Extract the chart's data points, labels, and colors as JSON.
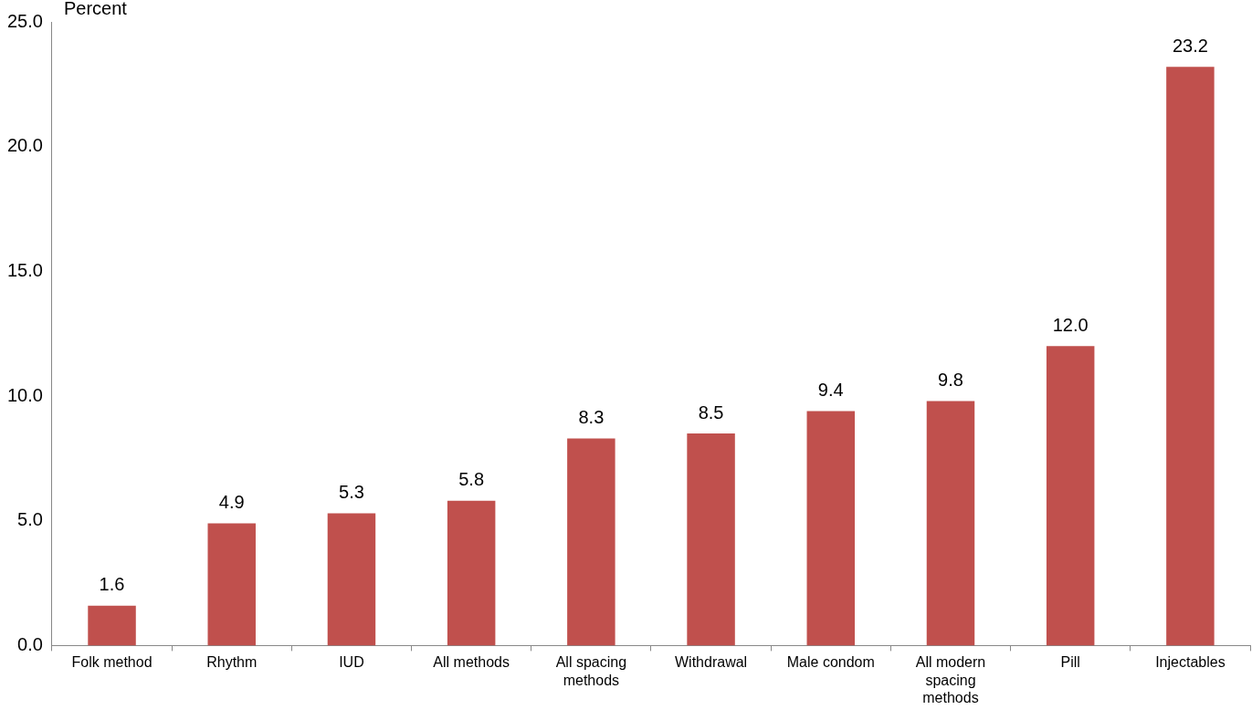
{
  "chart_data": {
    "type": "bar",
    "ylabel": "Percent",
    "categories": [
      "Folk method",
      "Rhythm",
      "IUD",
      "All methods",
      "All spacing methods",
      "Withdrawal",
      "Male condom",
      "All modern spacing methods",
      "Pill",
      "Injectables"
    ],
    "values": [
      1.6,
      4.9,
      5.3,
      5.8,
      8.3,
      8.5,
      9.4,
      9.8,
      12.0,
      23.2
    ],
    "value_labels": [
      "1.6",
      "4.9",
      "5.3",
      "5.8",
      "8.3",
      "8.5",
      "9.4",
      "9.8",
      "12.0",
      "23.2"
    ],
    "color": "#c0504d",
    "ylim": [
      0,
      25
    ],
    "yticks": [
      {
        "value": 0,
        "label": "0.0"
      },
      {
        "value": 5,
        "label": "5.0"
      },
      {
        "value": 10,
        "label": "10.0"
      },
      {
        "value": 15,
        "label": "15.0"
      },
      {
        "value": 20,
        "label": "20.0"
      },
      {
        "value": 25,
        "label": "25.0"
      }
    ],
    "grid": false,
    "legend": false
  }
}
